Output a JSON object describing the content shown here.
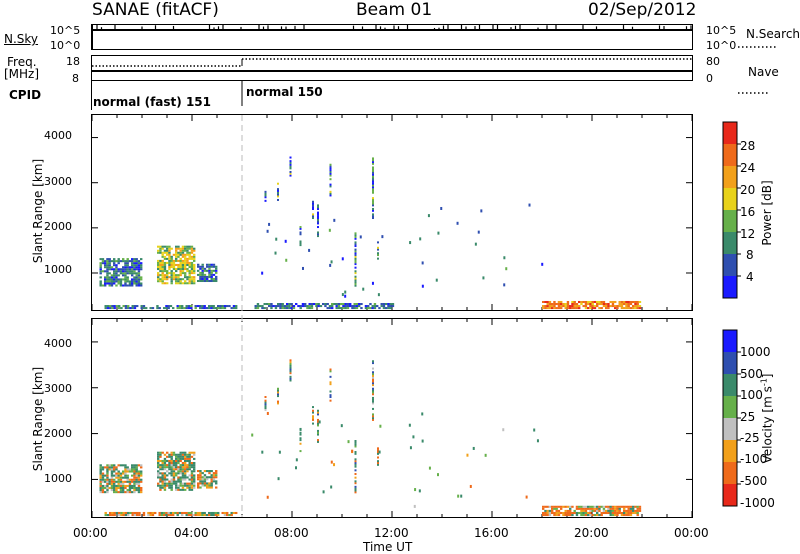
{
  "header": {
    "station": "SANAE (fitACF)",
    "beam": "Beam 01",
    "date": "02/Sep/2012"
  },
  "strip": {
    "nsky_label": "N.Sky",
    "nsky_ticks": [
      "10^5",
      "10^0"
    ],
    "nsearch_label": "N.Search",
    "nsearch_ticks": [
      "10^5",
      "10^0"
    ],
    "freq_label": "Freq.",
    "freq_unit": "[MHz]",
    "freq_ticks": [
      "18",
      "8"
    ],
    "nave_label": "Nave",
    "nave_ticks": [
      "80",
      "0"
    ],
    "cpid_label": "CPID",
    "cpid_segments": [
      "normal (fast) 151",
      "normal 150"
    ]
  },
  "x_ticks": [
    "00:00",
    "04:00",
    "08:00",
    "12:00",
    "16:00",
    "20:00",
    "00:00"
  ],
  "xlabel": "Time UT",
  "ylabel": "Slant Range [km]",
  "y_ticks": [
    "1000",
    "2000",
    "3000",
    "4000"
  ],
  "power_colorbar": {
    "label": "Power [dB]",
    "ticks": [
      "4",
      "8",
      "12",
      "16",
      "20",
      "24",
      "28"
    ],
    "colors": [
      "#1a1aff",
      "#2f4fb0",
      "#3a8a6a",
      "#66b04a",
      "#e8d21a",
      "#f2a01a",
      "#ef6a1a",
      "#e8281a"
    ]
  },
  "velocity_colorbar": {
    "label": "Velocity [m s",
    "label_sup": "-1",
    "label_end": "]",
    "ticks": [
      "1000",
      "500",
      "100",
      "25",
      "-25",
      "-100",
      "-500",
      "-1000"
    ],
    "colors": [
      "#1a1aff",
      "#2f4fb0",
      "#3a8a6a",
      "#66b04a",
      "#c0c0c0",
      "#f2a01a",
      "#ef6a1a",
      "#e8281a"
    ]
  },
  "chart_data": [
    {
      "type": "heatmap",
      "title": "",
      "xlabel": "Time UT",
      "ylabel": "Slant Range [km]",
      "xlim": [
        0,
        24
      ],
      "ylim": [
        180,
        4500
      ],
      "colorbar_label": "Power [dB]",
      "colorbar_range": [
        0,
        32
      ],
      "regions": [
        {
          "t": [
            0.3,
            2.0
          ],
          "r": [
            700,
            1300
          ],
          "level": 8
        },
        {
          "t": [
            2.6,
            4.1
          ],
          "r": [
            750,
            1600
          ],
          "level": 16
        },
        {
          "t": [
            4.2,
            5.0
          ],
          "r": [
            800,
            1200
          ],
          "level": 8
        },
        {
          "t": [
            0.5,
            5.8
          ],
          "r": [
            200,
            280
          ],
          "level": 8
        },
        {
          "t": [
            18.0,
            21.9
          ],
          "r": [
            200,
            380
          ],
          "level": 24
        },
        {
          "t": [
            6.5,
            12.0
          ],
          "r": [
            200,
            300
          ],
          "level": 8
        }
      ]
    },
    {
      "type": "heatmap",
      "title": "",
      "xlabel": "Time UT",
      "ylabel": "Slant Range [km]",
      "xlim": [
        0,
        24
      ],
      "ylim": [
        180,
        4500
      ],
      "colorbar_label": "Velocity [m s-1]",
      "colorbar_range": [
        -1000,
        1000
      ],
      "regions": [
        {
          "t": [
            0.3,
            2.0
          ],
          "r": [
            700,
            1300
          ],
          "level": 100
        },
        {
          "t": [
            2.6,
            4.1
          ],
          "r": [
            750,
            1600
          ],
          "level": 100
        },
        {
          "t": [
            4.2,
            5.0
          ],
          "r": [
            800,
            1200
          ],
          "level": 25
        },
        {
          "t": [
            0.5,
            5.8
          ],
          "r": [
            200,
            280
          ],
          "level": -100
        },
        {
          "t": [
            18.0,
            21.9
          ],
          "r": [
            200,
            400
          ],
          "level": -100
        }
      ]
    }
  ]
}
